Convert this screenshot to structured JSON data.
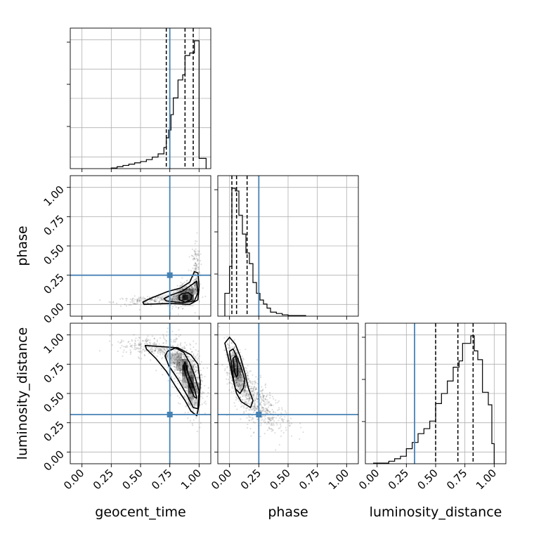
{
  "chart_data": {
    "type": "corner",
    "parameters": [
      "geocent_time",
      "phase",
      "luminosity_distance"
    ],
    "truths": {
      "geocent_time": 0.75,
      "phase": 0.25,
      "luminosity_distance": 0.32
    },
    "truth_color": "#4682b4",
    "axis_range": [
      -0.1,
      1.1
    ],
    "tick_labels": [
      "0.00",
      "0.25",
      "0.50",
      "0.75",
      "1.00"
    ],
    "tick_values": [
      0.0,
      0.25,
      0.5,
      0.75,
      1.0
    ],
    "grid": true,
    "histograms": [
      {
        "parameter": "geocent_time",
        "bin_edges": [
          0.25,
          0.3,
          0.35,
          0.4,
          0.45,
          0.5,
          0.55,
          0.6,
          0.65,
          0.7,
          0.72,
          0.74,
          0.76,
          0.78,
          0.82,
          0.86,
          0.88,
          0.92,
          0.96,
          1.0,
          1.06
        ],
        "counts": [
          0.5,
          1.5,
          2.5,
          3.5,
          4.5,
          5.5,
          7,
          9,
          11.5,
          16.5,
          24,
          30,
          42,
          55,
          69,
          73,
          88,
          90,
          99.5,
          8
        ],
        "quantiles": [
          0.72,
          0.88,
          0.95
        ]
      },
      {
        "parameter": "phase",
        "bin_edges": [
          -0.04,
          0.0,
          0.02,
          0.05,
          0.08,
          0.11,
          0.14,
          0.17,
          0.2,
          0.23,
          0.26,
          0.29,
          0.32,
          0.35,
          0.4,
          0.45,
          0.5,
          0.55,
          0.6,
          0.65
        ],
        "counts": [
          17,
          37,
          95,
          93,
          75,
          61,
          47,
          39,
          25,
          17,
          12,
          9,
          6,
          3,
          2,
          1,
          0.5,
          0.5,
          0.5
        ],
        "quantiles": [
          0.02,
          0.06,
          0.15
        ]
      },
      {
        "parameter": "luminosity_distance",
        "bin_edges": [
          -0.03,
          0.1,
          0.15,
          0.2,
          0.25,
          0.3,
          0.35,
          0.4,
          0.45,
          0.5,
          0.55,
          0.6,
          0.65,
          0.7,
          0.73,
          0.76,
          0.8,
          0.83,
          0.86,
          0.9,
          0.95,
          0.98,
          1.0
        ],
        "counts": [
          0.5,
          2,
          4,
          6,
          12,
          17,
          24,
          28,
          34,
          48,
          56,
          66,
          77,
          82,
          96,
          96,
          102,
          90,
          83,
          57,
          47,
          16
        ],
        "quantiles": [
          0.5,
          0.69,
          0.82
        ]
      }
    ],
    "scatter_panels": [
      {
        "x": "geocent_time",
        "y": "phase",
        "sample_clusters": [
          {
            "x_mean": 0.88,
            "x_sd": 0.055,
            "y_mean": 0.09,
            "y_sd": 0.05,
            "rho": 0.45,
            "n": 460
          },
          {
            "x_mean": 0.58,
            "x_sd": 0.15,
            "y_mean": 0.035,
            "y_sd": 0.02,
            "rho": 0.3,
            "n": 170
          },
          {
            "x_mean": 0.97,
            "x_sd": 0.02,
            "y_mean": 0.3,
            "y_sd": 0.13,
            "rho": 0.1,
            "n": 130
          }
        ],
        "contours": [
          [
            [
              0.83,
              0.04
            ],
            [
              0.88,
              0.02
            ],
            [
              0.93,
              0.04
            ],
            [
              0.94,
              0.075
            ],
            [
              0.91,
              0.1
            ],
            [
              0.86,
              0.095
            ],
            [
              0.83,
              0.075
            ]
          ],
          [
            [
              0.72,
              0.03
            ],
            [
              0.86,
              0.015
            ],
            [
              0.96,
              0.03
            ],
            [
              0.99,
              0.1
            ],
            [
              0.98,
              0.2
            ],
            [
              0.94,
              0.17
            ],
            [
              0.86,
              0.115
            ],
            [
              0.76,
              0.08
            ],
            [
              0.7,
              0.05
            ]
          ],
          [
            [
              0.53,
              0.0
            ],
            [
              0.75,
              0.01
            ],
            [
              0.92,
              0.0
            ],
            [
              0.99,
              0.04
            ],
            [
              1.0,
              0.16
            ],
            [
              0.99,
              0.27
            ],
            [
              0.96,
              0.28
            ],
            [
              0.92,
              0.19
            ],
            [
              0.84,
              0.14
            ],
            [
              0.73,
              0.11
            ],
            [
              0.58,
              0.05
            ],
            [
              0.52,
              0.02
            ]
          ]
        ],
        "density_cells": [
          {
            "x": 0.88,
            "y": 0.06,
            "level": 0.95
          },
          {
            "x": 0.93,
            "y": 0.06,
            "level": 0.75
          },
          {
            "x": 0.83,
            "y": 0.06,
            "level": 0.4
          },
          {
            "x": 0.93,
            "y": 0.11,
            "level": 0.45
          },
          {
            "x": 0.88,
            "y": 0.11,
            "level": 0.3
          },
          {
            "x": 0.78,
            "y": 0.06,
            "level": 0.2
          },
          {
            "x": 0.98,
            "y": 0.11,
            "level": 0.3
          },
          {
            "x": 0.98,
            "y": 0.17,
            "level": 0.25
          },
          {
            "x": 0.73,
            "y": 0.06,
            "level": 0.12
          },
          {
            "x": 0.83,
            "y": 0.11,
            "level": 0.18
          },
          {
            "x": 0.68,
            "y": 0.06,
            "level": 0.08
          },
          {
            "x": 0.88,
            "y": 0.01,
            "level": 0.15
          },
          {
            "x": 0.93,
            "y": 0.01,
            "level": 0.12
          }
        ]
      },
      {
        "x": "geocent_time",
        "y": "luminosity_distance",
        "sample_clusters": [
          {
            "x_mean": 0.86,
            "x_sd": 0.08,
            "y_mean": 0.73,
            "y_sd": 0.12,
            "rho": -0.45,
            "n": 500
          },
          {
            "x_mean": 0.94,
            "x_sd": 0.04,
            "y_mean": 0.55,
            "y_sd": 0.14,
            "rho": -0.2,
            "n": 300
          },
          {
            "x_mean": 0.55,
            "x_sd": 0.12,
            "y_mean": 0.9,
            "y_sd": 0.045,
            "rho": -0.2,
            "n": 200
          }
        ],
        "contours": [
          [
            [
              0.88,
              0.77
            ],
            [
              0.91,
              0.66
            ],
            [
              0.96,
              0.54
            ],
            [
              0.98,
              0.46
            ],
            [
              0.96,
              0.47
            ],
            [
              0.92,
              0.56
            ],
            [
              0.88,
              0.68
            ],
            [
              0.87,
              0.74
            ]
          ],
          [
            [
              0.73,
              0.86
            ],
            [
              0.8,
              0.89
            ],
            [
              0.87,
              0.85
            ],
            [
              0.92,
              0.76
            ],
            [
              0.96,
              0.66
            ],
            [
              1.0,
              0.52
            ],
            [
              0.99,
              0.37
            ],
            [
              0.95,
              0.38
            ],
            [
              0.9,
              0.48
            ],
            [
              0.82,
              0.62
            ],
            [
              0.74,
              0.74
            ],
            [
              0.71,
              0.82
            ]
          ],
          [
            [
              0.54,
              0.91
            ],
            [
              0.68,
              0.9
            ],
            [
              0.82,
              0.89
            ],
            [
              0.93,
              0.83
            ],
            [
              0.99,
              0.75
            ],
            [
              1.01,
              0.6
            ],
            [
              1.0,
              0.4
            ],
            [
              0.98,
              0.31
            ],
            [
              0.93,
              0.35
            ],
            [
              0.88,
              0.44
            ],
            [
              0.8,
              0.56
            ],
            [
              0.72,
              0.69
            ],
            [
              0.63,
              0.8
            ],
            [
              0.55,
              0.88
            ]
          ]
        ],
        "density_cells": [
          {
            "x": 0.88,
            "y": 0.72,
            "level": 0.95
          },
          {
            "x": 0.93,
            "y": 0.57,
            "level": 0.9
          },
          {
            "x": 0.93,
            "y": 0.62,
            "level": 0.75
          },
          {
            "x": 0.88,
            "y": 0.67,
            "level": 0.65
          },
          {
            "x": 0.93,
            "y": 0.52,
            "level": 0.65
          },
          {
            "x": 0.88,
            "y": 0.77,
            "level": 0.55
          },
          {
            "x": 0.83,
            "y": 0.77,
            "level": 0.4
          },
          {
            "x": 0.93,
            "y": 0.67,
            "level": 0.45
          },
          {
            "x": 0.83,
            "y": 0.72,
            "level": 0.3
          },
          {
            "x": 0.98,
            "y": 0.52,
            "level": 0.35
          },
          {
            "x": 0.98,
            "y": 0.57,
            "level": 0.3
          },
          {
            "x": 0.88,
            "y": 0.62,
            "level": 0.35
          },
          {
            "x": 0.93,
            "y": 0.47,
            "level": 0.35
          },
          {
            "x": 0.78,
            "y": 0.82,
            "level": 0.25
          },
          {
            "x": 0.83,
            "y": 0.82,
            "level": 0.3
          },
          {
            "x": 0.73,
            "y": 0.82,
            "level": 0.15
          },
          {
            "x": 0.78,
            "y": 0.77,
            "level": 0.2
          },
          {
            "x": 0.98,
            "y": 0.42,
            "level": 0.2
          },
          {
            "x": 0.93,
            "y": 0.72,
            "level": 0.25
          },
          {
            "x": 0.68,
            "y": 0.87,
            "level": 0.1
          },
          {
            "x": 0.88,
            "y": 0.57,
            "level": 0.2
          },
          {
            "x": 0.93,
            "y": 0.42,
            "level": 0.15
          }
        ]
      },
      {
        "x": "phase",
        "y": "luminosity_distance",
        "sample_clusters": [
          {
            "x_mean": 0.065,
            "x_sd": 0.045,
            "y_mean": 0.72,
            "y_sd": 0.1,
            "rho": -0.5,
            "n": 420
          },
          {
            "x_mean": 0.2,
            "x_sd": 0.1,
            "y_mean": 0.47,
            "y_sd": 0.12,
            "rho": -0.6,
            "n": 450
          },
          {
            "x_mean": 0.32,
            "x_sd": 0.12,
            "y_mean": 0.3,
            "y_sd": 0.09,
            "rho": -0.35,
            "n": 130
          }
        ],
        "contours": [
          [
            [
              0.03,
              0.8
            ],
            [
              0.04,
              0.69
            ],
            [
              0.06,
              0.64
            ],
            [
              0.07,
              0.66
            ],
            [
              0.065,
              0.76
            ],
            [
              0.05,
              0.82
            ]
          ],
          [
            [
              0.0,
              0.86
            ],
            [
              0.03,
              0.65
            ],
            [
              0.05,
              0.54
            ],
            [
              0.09,
              0.5
            ],
            [
              0.12,
              0.55
            ],
            [
              0.13,
              0.62
            ],
            [
              0.1,
              0.72
            ],
            [
              0.06,
              0.82
            ],
            [
              0.03,
              0.88
            ]
          ],
          [
            [
              -0.04,
              0.93
            ],
            [
              0.0,
              0.76
            ],
            [
              0.03,
              0.62
            ],
            [
              0.06,
              0.5
            ],
            [
              0.1,
              0.43
            ],
            [
              0.18,
              0.38
            ],
            [
              0.2,
              0.44
            ],
            [
              0.16,
              0.55
            ],
            [
              0.13,
              0.68
            ],
            [
              0.09,
              0.82
            ],
            [
              0.05,
              0.92
            ],
            [
              0.0,
              0.98
            ]
          ]
        ],
        "density_cells": [
          {
            "x": 0.055,
            "y": 0.74,
            "level": 0.95
          },
          {
            "x": 0.055,
            "y": 0.7,
            "level": 0.9
          },
          {
            "x": 0.035,
            "y": 0.74,
            "level": 0.6
          },
          {
            "x": 0.075,
            "y": 0.7,
            "level": 0.55
          },
          {
            "x": 0.055,
            "y": 0.78,
            "level": 0.55
          },
          {
            "x": 0.055,
            "y": 0.66,
            "level": 0.55
          },
          {
            "x": 0.075,
            "y": 0.66,
            "level": 0.45
          },
          {
            "x": 0.035,
            "y": 0.78,
            "level": 0.4
          },
          {
            "x": 0.095,
            "y": 0.62,
            "level": 0.3
          },
          {
            "x": 0.075,
            "y": 0.62,
            "level": 0.35
          },
          {
            "x": 0.095,
            "y": 0.58,
            "level": 0.25
          },
          {
            "x": 0.035,
            "y": 0.82,
            "level": 0.25
          },
          {
            "x": 0.015,
            "y": 0.82,
            "level": 0.15
          },
          {
            "x": 0.115,
            "y": 0.54,
            "level": 0.18
          },
          {
            "x": 0.135,
            "y": 0.5,
            "level": 0.12
          },
          {
            "x": 0.075,
            "y": 0.74,
            "level": 0.3
          },
          {
            "x": 0.075,
            "y": 0.58,
            "level": 0.2
          },
          {
            "x": 0.115,
            "y": 0.58,
            "level": 0.15
          }
        ]
      }
    ]
  }
}
